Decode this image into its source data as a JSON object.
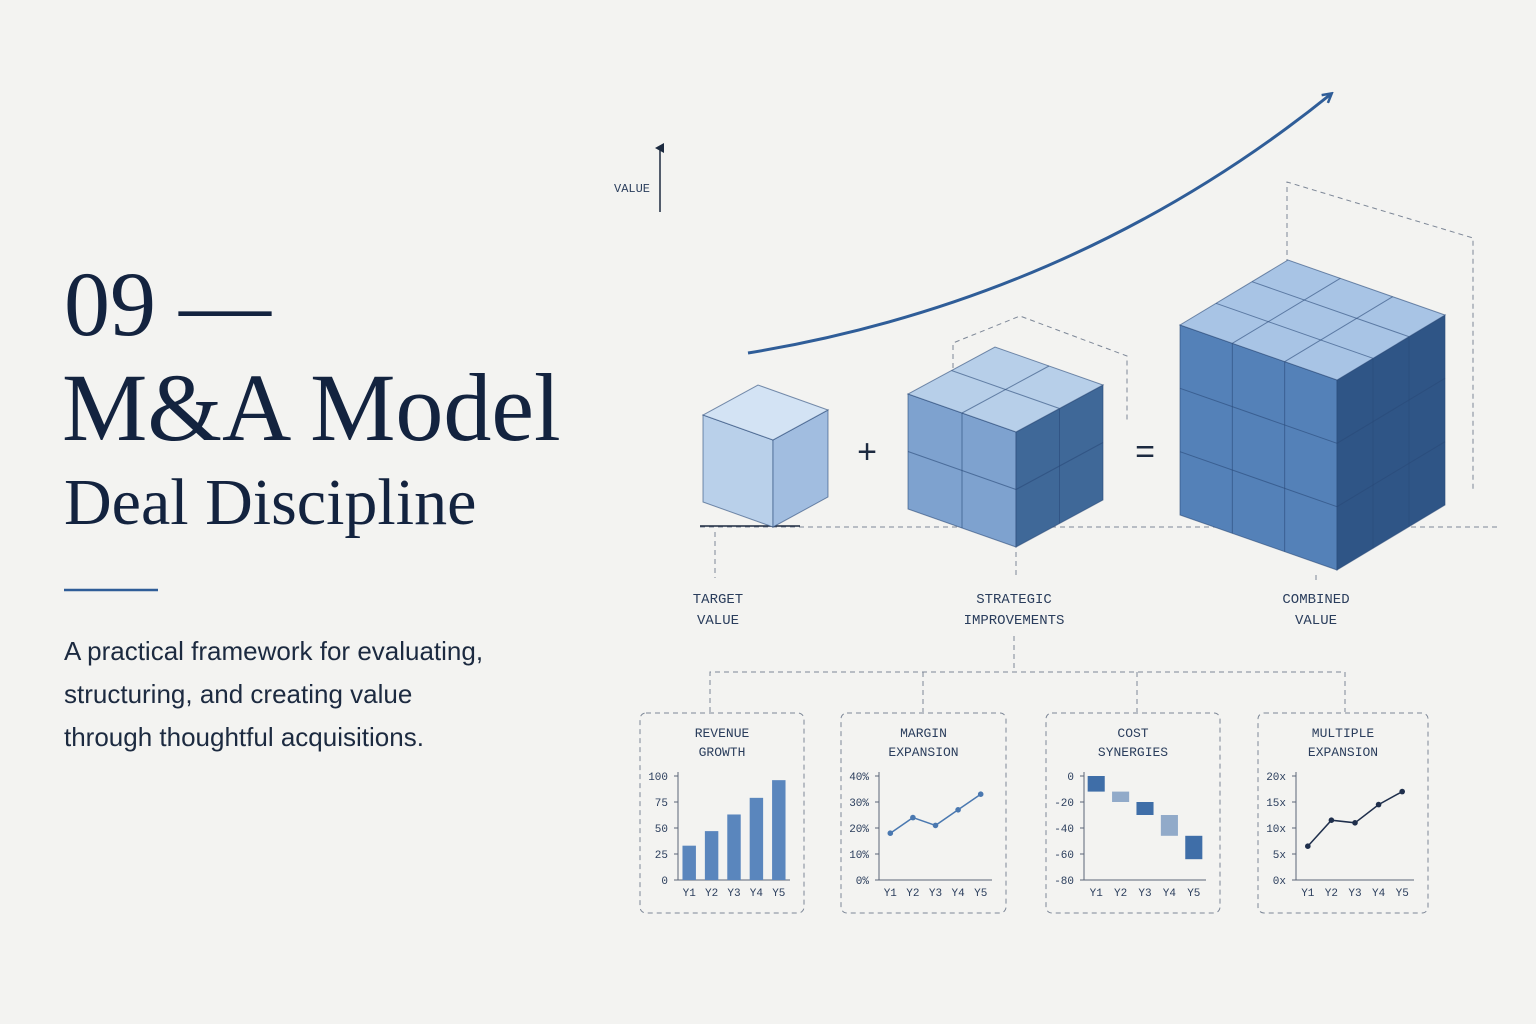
{
  "header": {
    "number": "09 —",
    "title": "M&A Model",
    "subtitle": "Deal Discipline",
    "description": [
      "A practical framework for evaluating,",
      "structuring, and creating value",
      "through thoughtful acquisitions."
    ]
  },
  "diagram": {
    "axis_label": "VALUE",
    "plus": "+",
    "equals": "=",
    "labels": [
      [
        "TARGET",
        "VALUE"
      ],
      [
        "STRATEGIC",
        "IMPROVEMENTS"
      ],
      [
        "COMBINED",
        "VALUE"
      ]
    ]
  },
  "chart_data": [
    {
      "type": "bar",
      "title": [
        "REVENUE",
        "GROWTH"
      ],
      "categories": [
        "Y1",
        "Y2",
        "Y3",
        "Y4",
        "Y5"
      ],
      "values": [
        33,
        47,
        63,
        79,
        96
      ],
      "color": "#5a86bd",
      "ylim": [
        0,
        100
      ],
      "yticks": [
        0,
        25,
        50,
        75,
        100
      ]
    },
    {
      "type": "line",
      "title": [
        "MARGIN",
        "EXPANSION"
      ],
      "categories": [
        "Y1",
        "Y2",
        "Y3",
        "Y4",
        "Y5"
      ],
      "values": [
        18,
        24,
        21,
        27,
        33
      ],
      "color": "#4a78b0",
      "ylim": [
        0,
        40
      ],
      "yticks": [
        {
          "value": 0,
          "label": "0%"
        },
        {
          "value": 10,
          "label": "10%"
        },
        {
          "value": 20,
          "label": "20%"
        },
        {
          "value": 30,
          "label": "30%"
        },
        {
          "value": 40,
          "label": "40%"
        }
      ]
    },
    {
      "type": "waterfall",
      "title": [
        "COST",
        "SYNERGIES"
      ],
      "categories": [
        "Y1",
        "Y2",
        "Y3",
        "Y4",
        "Y5"
      ],
      "values": [
        -12,
        -8,
        -10,
        -16,
        -18
      ],
      "color": "#3f6ea8",
      "ylim": [
        -80,
        0
      ],
      "yticks": [
        -80,
        -60,
        -40,
        -20,
        0
      ]
    },
    {
      "type": "line",
      "title": [
        "MULTIPLE",
        "EXPANSION"
      ],
      "categories": [
        "Y1",
        "Y2",
        "Y3",
        "Y4",
        "Y5"
      ],
      "values": [
        6.5,
        11.5,
        11,
        14.5,
        17
      ],
      "color": "#1f2f4c",
      "ylim": [
        0,
        20
      ],
      "yticks": [
        {
          "value": 0,
          "label": "0x"
        },
        {
          "value": 5,
          "label": "5x"
        },
        {
          "value": 10,
          "label": "10x"
        },
        {
          "value": 15,
          "label": "15x"
        },
        {
          "value": 20,
          "label": "20x"
        }
      ]
    }
  ]
}
